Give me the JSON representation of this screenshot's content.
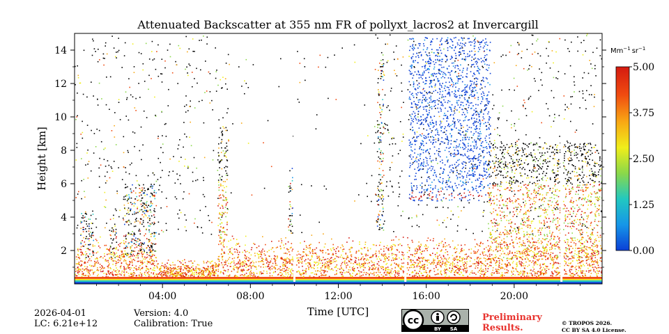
{
  "chart_data": {
    "type": "heatmap",
    "title": "Attenuated Backscatter at 355 nm FR of pollyxt_lacros2 at Invercargill",
    "xlabel": "Time [UTC]",
    "ylabel": "Height [km]",
    "xlim_hours": [
      0,
      24
    ],
    "ylim_km": [
      0,
      15
    ],
    "x_ticks": [
      {
        "value": 4,
        "label": "04:00"
      },
      {
        "value": 8,
        "label": "08:00"
      },
      {
        "value": 12,
        "label": "12:00"
      },
      {
        "value": 16,
        "label": "16:00"
      },
      {
        "value": 20,
        "label": "20:00"
      }
    ],
    "y_ticks": [
      {
        "value": 2,
        "label": "2"
      },
      {
        "value": 4,
        "label": "4"
      },
      {
        "value": 6,
        "label": "6"
      },
      {
        "value": 8,
        "label": "8"
      },
      {
        "value": 10,
        "label": "10"
      },
      {
        "value": 12,
        "label": "12"
      },
      {
        "value": 14,
        "label": "14"
      }
    ],
    "colorbar": {
      "unit_base": "Mm",
      "unit_exp1": "−1",
      "unit_mid": "sr",
      "unit_exp2": "−1",
      "range": [
        0,
        5
      ],
      "ticks": [
        {
          "value": 0,
          "label": "0.00"
        },
        {
          "value": 1.25,
          "label": "1.25"
        },
        {
          "value": 2.5,
          "label": "2.50"
        },
        {
          "value": 3.75,
          "label": "3.75"
        },
        {
          "value": 5,
          "label": "5.00"
        }
      ],
      "colors": [
        "#0b3fd6",
        "#1696e8",
        "#22c8c0",
        "#8ad84a",
        "#f0ee1a",
        "#f8a814",
        "#f04a10",
        "#d41a10"
      ]
    },
    "data_gaps_hours": [
      10.0,
      15.05,
      22.15
    ],
    "cloud_columns": [
      {
        "name": "low-cloud-00h",
        "start_h": 0.25,
        "end_h": 0.85,
        "base_km": 1.6,
        "top_km": 4.4
      },
      {
        "name": "low-cloud-02h",
        "start_h": 1.6,
        "end_h": 1.9,
        "base_km": 1.6,
        "top_km": 4.0
      },
      {
        "name": "cloud-03h",
        "start_h": 2.2,
        "end_h": 3.7,
        "base_km": 1.7,
        "top_km": 6.0
      },
      {
        "name": "cloud-0630",
        "start_h": 6.5,
        "end_h": 6.95,
        "base_km": 2.5,
        "top_km": 9.5
      },
      {
        "name": "cloud-0950",
        "start_h": 9.7,
        "end_h": 9.9,
        "base_km": 3.0,
        "top_km": 7.0
      },
      {
        "name": "cloud-1400",
        "start_h": 13.75,
        "end_h": 14.05,
        "base_km": 3.3,
        "top_km": 14.0
      },
      {
        "name": "cirrus-1600",
        "start_h": 15.2,
        "end_h": 18.9,
        "base_km": 5.0,
        "top_km": 14.8
      },
      {
        "name": "cloud-2030",
        "start_h": 18.8,
        "end_h": 24.0,
        "base_km": 1.5,
        "top_km": 8.5
      }
    ],
    "boundary_layer_km": 3.0
  },
  "footer": {
    "date": "2026-04-01",
    "lc": "LC: 6.21e+12",
    "version": "Version: 4.0",
    "calibration": "Calibration: True",
    "preliminary": "Preliminary",
    "results": "Results.",
    "copyright": "© TROPOS 2026.",
    "license": "CC BY SA 4.0 License."
  },
  "cc_badge": {
    "cc": "cc",
    "by": "BY",
    "sa": "SA"
  }
}
